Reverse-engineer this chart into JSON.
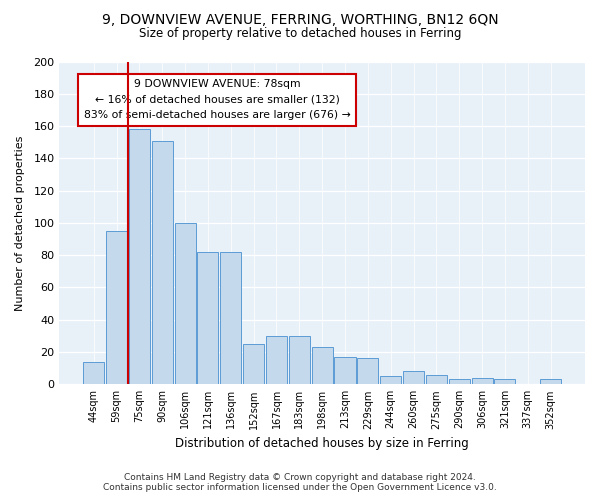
{
  "title1": "9, DOWNVIEW AVENUE, FERRING, WORTHING, BN12 6QN",
  "title2": "Size of property relative to detached houses in Ferring",
  "xlabel": "Distribution of detached houses by size in Ferring",
  "ylabel": "Number of detached properties",
  "categories": [
    "44sqm",
    "59sqm",
    "75sqm",
    "90sqm",
    "106sqm",
    "121sqm",
    "136sqm",
    "152sqm",
    "167sqm",
    "183sqm",
    "198sqm",
    "213sqm",
    "229sqm",
    "244sqm",
    "260sqm",
    "275sqm",
    "290sqm",
    "306sqm",
    "321sqm",
    "337sqm",
    "352sqm"
  ],
  "values": [
    14,
    95,
    158,
    151,
    100,
    82,
    82,
    25,
    30,
    30,
    23,
    17,
    16,
    5,
    8,
    6,
    3,
    4,
    3,
    0,
    3
  ],
  "bar_color": "#c5d9ed",
  "bar_edge_color": "#5b9bd5",
  "vline_x": 1.5,
  "vline_color": "#cc0000",
  "annotation_text": "9 DOWNVIEW AVENUE: 78sqm\n← 16% of detached houses are smaller (132)\n83% of semi-detached houses are larger (676) →",
  "annotation_box_color": "#ffffff",
  "annotation_box_edge": "#cc0000",
  "ylim": [
    0,
    200
  ],
  "yticks": [
    0,
    20,
    40,
    60,
    80,
    100,
    120,
    140,
    160,
    180,
    200
  ],
  "footer": "Contains HM Land Registry data © Crown copyright and database right 2024.\nContains public sector information licensed under the Open Government Licence v3.0.",
  "bg_color": "#ffffff",
  "plot_bg_color": "#e8f0f8"
}
